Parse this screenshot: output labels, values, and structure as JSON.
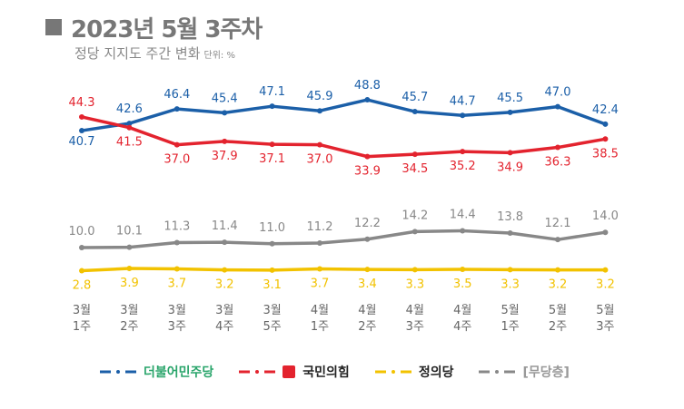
{
  "header": {
    "title": "2023년 5월 3주차",
    "subtitle": "정당 지지도 주간 변화",
    "unit": "단위: %"
  },
  "chart_data": {
    "type": "line",
    "title": "2023년 5월 3주차",
    "subtitle": "정당 지지도 주간 변화",
    "unit": "%",
    "categories": [
      [
        "3월",
        "1주"
      ],
      [
        "3월",
        "2주"
      ],
      [
        "3월",
        "3주"
      ],
      [
        "3월",
        "4주"
      ],
      [
        "3월",
        "5주"
      ],
      [
        "4월",
        "1주"
      ],
      [
        "4월",
        "2주"
      ],
      [
        "4월",
        "3주"
      ],
      [
        "4월",
        "4주"
      ],
      [
        "5월",
        "1주"
      ],
      [
        "5월",
        "2주"
      ],
      [
        "5월",
        "3주"
      ]
    ],
    "grid": false,
    "legend_placement": "bottom",
    "series": [
      {
        "name": "더불어민주당",
        "color": "#1b5fa8",
        "values": [
          40.7,
          42.6,
          46.4,
          45.4,
          47.1,
          45.9,
          48.8,
          45.7,
          44.7,
          45.5,
          47.0,
          42.4
        ]
      },
      {
        "name": "국민의힘",
        "color": "#e3232e",
        "values": [
          44.3,
          41.5,
          37.0,
          37.9,
          37.1,
          37.0,
          33.9,
          34.5,
          35.2,
          34.9,
          36.3,
          38.5
        ]
      },
      {
        "name": "정의당",
        "color": "#f2c200",
        "values": [
          2.8,
          3.9,
          3.7,
          3.2,
          3.1,
          3.7,
          3.4,
          3.3,
          3.5,
          3.3,
          3.2,
          3.2
        ]
      },
      {
        "name": "[무당층]",
        "color": "#888888",
        "values": [
          10.0,
          10.1,
          11.3,
          11.4,
          11.0,
          11.2,
          12.2,
          14.2,
          14.4,
          13.8,
          12.1,
          14.0
        ]
      }
    ]
  }
}
